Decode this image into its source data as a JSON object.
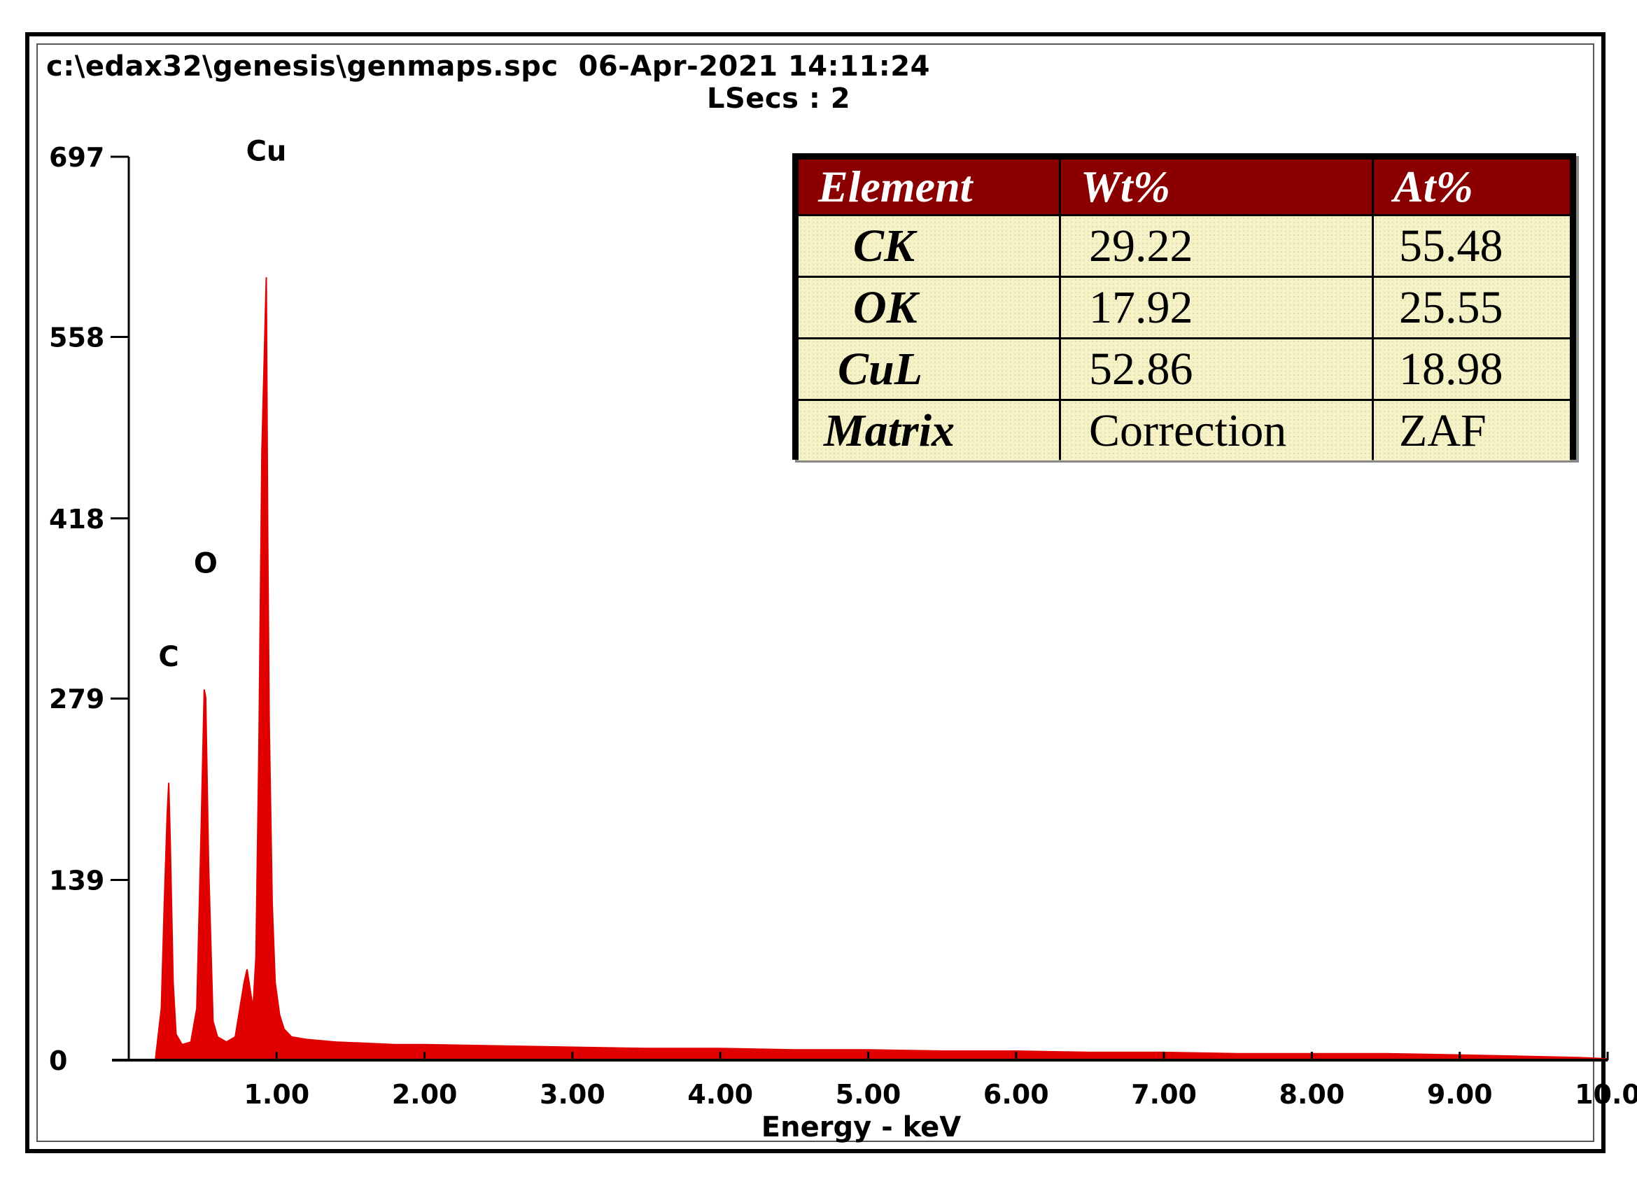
{
  "header": {
    "file_path": "c:\\edax32\\genesis\\genmaps.spc",
    "datetime": "06-Apr-2021 14:11:24",
    "lsecs": "LSecs :  2"
  },
  "colors": {
    "spectrum": "#e00000",
    "table_header": "#8a0000",
    "table_cell": "#f4f2c6"
  },
  "table": {
    "headers": [
      "Element",
      "Wt%",
      "At%"
    ],
    "rows": [
      [
        "CK",
        "29.22",
        "55.48"
      ],
      [
        "OK",
        "17.92",
        "25.55"
      ],
      [
        "CuL",
        "52.86",
        "18.98"
      ],
      [
        "Matrix",
        "Correction",
        "ZAF"
      ]
    ]
  },
  "chart_data": {
    "type": "area",
    "title": "",
    "xlabel": "Energy - keV",
    "ylabel": "",
    "xlim": [
      0,
      10.0
    ],
    "ylim": [
      0,
      697
    ],
    "x_ticks": [
      "1.00",
      "2.00",
      "3.00",
      "4.00",
      "5.00",
      "6.00",
      "7.00",
      "8.00",
      "9.00",
      "10.0"
    ],
    "y_ticks": [
      "0",
      "139",
      "279",
      "418",
      "558",
      "697"
    ],
    "grid": false,
    "peak_labels": [
      {
        "label": "C",
        "x": 0.27,
        "y": 214
      },
      {
        "label": "O",
        "x": 0.52,
        "y": 286
      },
      {
        "label": "Cu",
        "x": 0.93,
        "y": 604
      }
    ],
    "series": [
      {
        "x": [
          0.18,
          0.22,
          0.24,
          0.26,
          0.27,
          0.28,
          0.3,
          0.32,
          0.36,
          0.42,
          0.46,
          0.49,
          0.51,
          0.52,
          0.54,
          0.57,
          0.6,
          0.66,
          0.72,
          0.78,
          0.8,
          0.84,
          0.86,
          0.88,
          0.9,
          0.92,
          0.93,
          0.94,
          0.95,
          0.97,
          0.99,
          1.02,
          1.05,
          1.1,
          1.2,
          1.4,
          1.6,
          1.8,
          2.0,
          2.5,
          3.0,
          3.5,
          4.0,
          4.5,
          5.0,
          5.5,
          6.0,
          6.5,
          7.0,
          7.5,
          8.0,
          8.5,
          9.0,
          9.4,
          9.8,
          10.0
        ],
        "y": [
          0,
          40,
          120,
          190,
          214,
          170,
          60,
          20,
          12,
          14,
          40,
          180,
          286,
          280,
          150,
          30,
          18,
          14,
          18,
          60,
          70,
          40,
          80,
          240,
          470,
          560,
          604,
          400,
          260,
          120,
          60,
          35,
          24,
          18,
          16,
          14,
          13,
          12,
          12,
          11,
          10,
          9,
          9,
          8,
          8,
          7,
          7,
          6,
          6,
          5,
          5,
          5,
          4,
          3,
          2,
          1
        ]
      }
    ]
  }
}
